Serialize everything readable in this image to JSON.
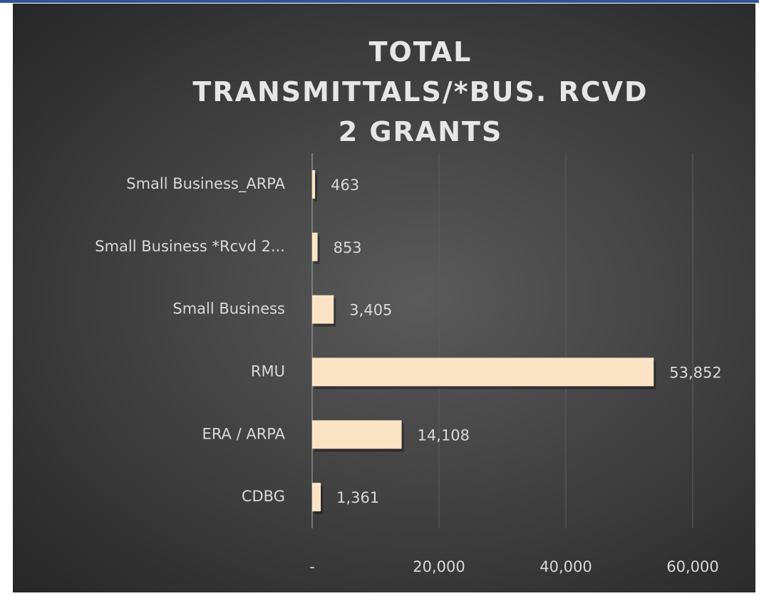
{
  "chart_data": {
    "type": "bar",
    "orientation": "horizontal",
    "title": "TOTAL TRANSMITTALS/*BUS. RCVD 2 GRANTS",
    "categories": [
      "Small Business_ARPA",
      "Small Business *Rcvd 2...",
      "Small Business",
      "RMU",
      "ERA / ARPA",
      "CDBG"
    ],
    "values": [
      463,
      853,
      3405,
      53852,
      14108,
      1361
    ],
    "value_labels": [
      "463",
      "853",
      "3,405",
      "53,852",
      "14,108",
      "1,361"
    ],
    "color": "#fbe4c6",
    "xlim": [
      0,
      60000
    ],
    "xticks": [
      {
        "value": 0,
        "label": "-"
      },
      {
        "value": 20000,
        "label": "20,000"
      },
      {
        "value": 40000,
        "label": "40,000"
      },
      {
        "value": 60000,
        "label": "60,000"
      }
    ],
    "grid": true
  }
}
